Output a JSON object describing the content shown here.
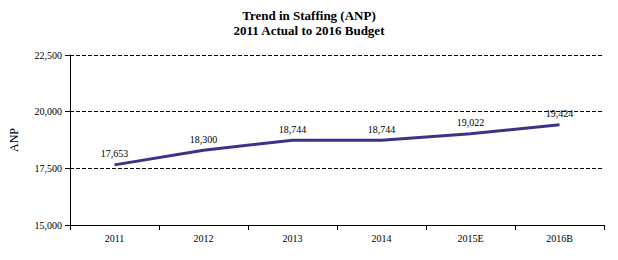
{
  "chart_data": {
    "type": "line",
    "title": "Trend in Staffing (ANP)",
    "subtitle": "2011 Actual to 2016 Budget",
    "ylabel": "ANP",
    "categories": [
      "2011",
      "2012",
      "2013",
      "2014",
      "2015E",
      "2016B"
    ],
    "values": [
      17653,
      18300,
      18744,
      18744,
      19022,
      19424
    ],
    "value_labels": [
      "17,653",
      "18,300",
      "18,744",
      "18,744",
      "19,022",
      "19,424"
    ],
    "data_labels": true,
    "color": "#3b3486",
    "marker": "none",
    "line_style": "solid",
    "ylim": [
      15000,
      22500
    ],
    "yticks": [
      {
        "value": 15000,
        "label": "15,000"
      },
      {
        "value": 17500,
        "label": "17,500"
      },
      {
        "value": 20000,
        "label": "20,000"
      },
      {
        "value": 22500,
        "label": "22,500"
      }
    ],
    "grid": true
  }
}
